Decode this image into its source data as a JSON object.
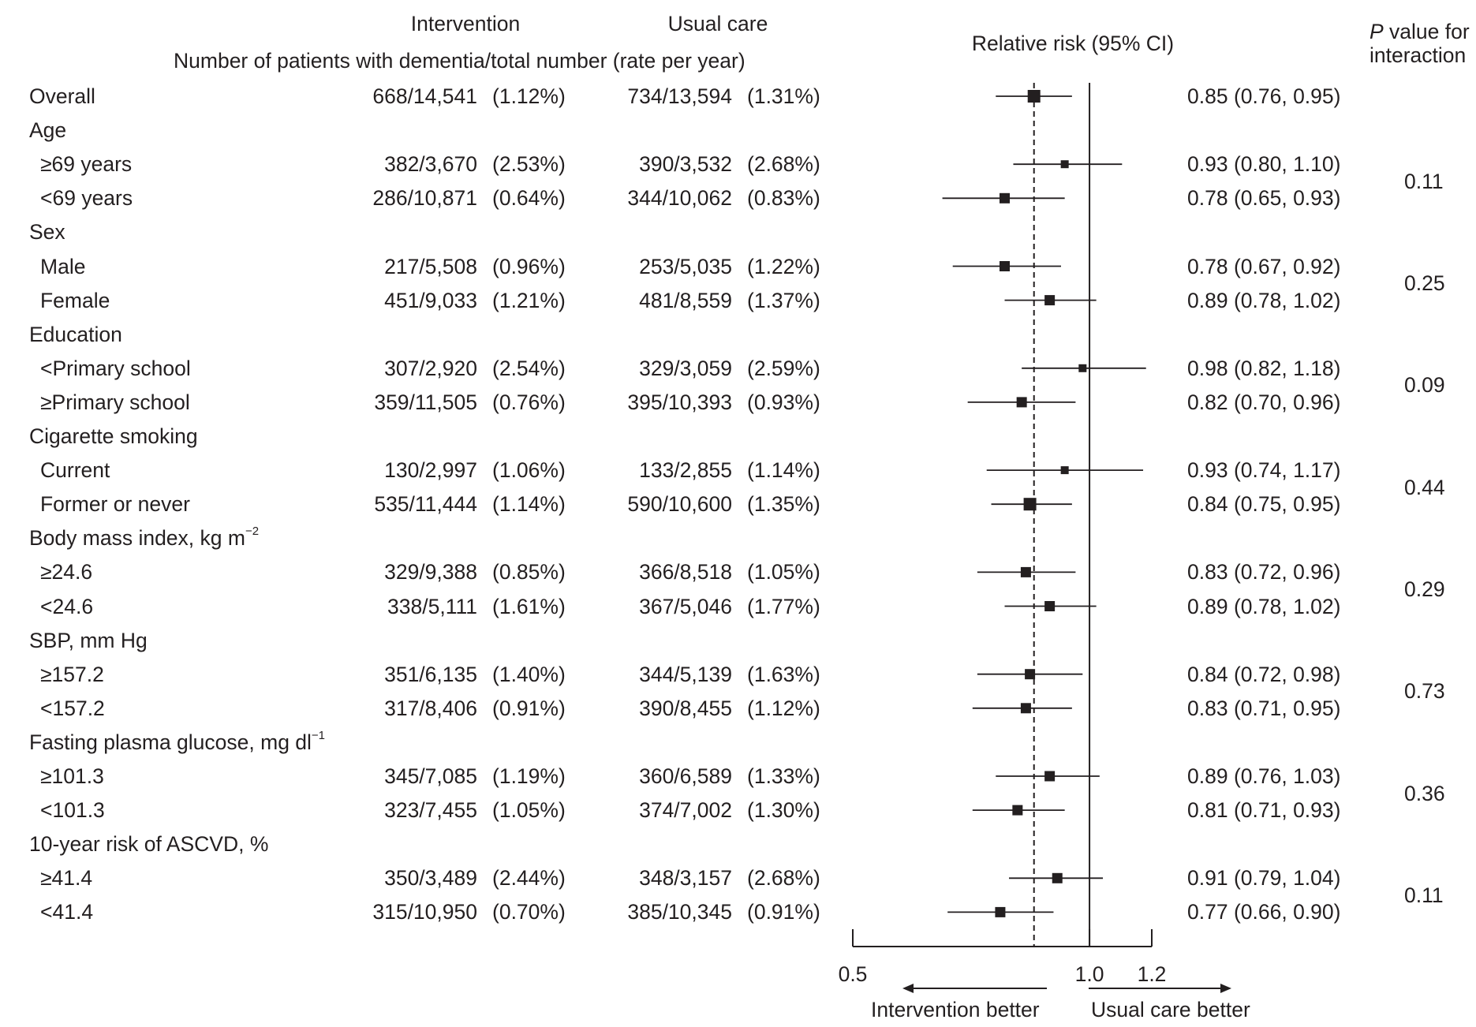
{
  "header": {
    "intervention": "Intervention",
    "usual_care": "Usual care",
    "counts_caption": "Number of patients with dementia/total number (rate per year)",
    "rr_caption": "Relative risk (95% CI)",
    "p_caption_italic": "P",
    "p_caption_line1": " value for",
    "p_caption_line2": "interaction"
  },
  "rows": [
    {
      "label": "Overall",
      "int": "668/14,541",
      "int_rate": "(1.12%)",
      "uc": "734/13,594",
      "uc_rate": "(1.31%)",
      "rr_text": "0.85 (0.76, 0.95)"
    },
    {
      "label": "Age",
      "sup": "",
      "header": true
    },
    {
      "label": "≥69 years",
      "int": "382/3,670",
      "int_rate": "(2.53%)",
      "uc": "390/3,532",
      "uc_rate": "(2.68%)",
      "rr_text": "0.93 (0.80, 1.10)"
    },
    {
      "label": "<69 years",
      "int": "286/10,871",
      "int_rate": "(0.64%)",
      "uc": "344/10,062",
      "uc_rate": "(0.83%)",
      "rr_text": "0.78 (0.65, 0.93)"
    },
    {
      "label": "Sex",
      "sup": "",
      "header": true
    },
    {
      "label": "Male",
      "int": "217/5,508",
      "int_rate": "(0.96%)",
      "uc": "253/5,035",
      "uc_rate": "(1.22%)",
      "rr_text": "0.78 (0.67, 0.92)"
    },
    {
      "label": "Female",
      "int": "451/9,033",
      "int_rate": "(1.21%)",
      "uc": "481/8,559",
      "uc_rate": "(1.37%)",
      "rr_text": "0.89 (0.78, 1.02)"
    },
    {
      "label": "Education",
      "sup": "",
      "header": true
    },
    {
      "label": "<Primary school",
      "int": "307/2,920",
      "int_rate": "(2.54%)",
      "uc": "329/3,059",
      "uc_rate": "(2.59%)",
      "rr_text": "0.98 (0.82, 1.18)"
    },
    {
      "label": "≥Primary school",
      "int": "359/11,505",
      "int_rate": "(0.76%)",
      "uc": "395/10,393",
      "uc_rate": "(0.93%)",
      "rr_text": "0.82 (0.70, 0.96)"
    },
    {
      "label": "Cigarette smoking",
      "sup": "",
      "header": true
    },
    {
      "label": "Current",
      "int": "130/2,997",
      "int_rate": "(1.06%)",
      "uc": "133/2,855",
      "uc_rate": "(1.14%)",
      "rr_text": "0.93 (0.74, 1.17)"
    },
    {
      "label": "Former or never",
      "int": "535/11,444",
      "int_rate": "(1.14%)",
      "uc": "590/10,600",
      "uc_rate": "(1.35%)",
      "rr_text": "0.84 (0.75, 0.95)"
    },
    {
      "label": "Body mass index, kg m",
      "sup": "−2",
      "header": true
    },
    {
      "label": "≥24.6",
      "int": "329/9,388",
      "int_rate": "(0.85%)",
      "uc": "366/8,518",
      "uc_rate": "(1.05%)",
      "rr_text": "0.83 (0.72, 0.96)"
    },
    {
      "label": "<24.6",
      "int": "338/5,111",
      "int_rate": "(1.61%)",
      "uc": "367/5,046",
      "uc_rate": "(1.77%)",
      "rr_text": "0.89 (0.78, 1.02)"
    },
    {
      "label": "SBP, mm Hg",
      "sup": "",
      "header": true
    },
    {
      "label": "≥157.2",
      "int": "351/6,135",
      "int_rate": "(1.40%)",
      "uc": "344/5,139",
      "uc_rate": "(1.63%)",
      "rr_text": "0.84 (0.72, 0.98)"
    },
    {
      "label": "<157.2",
      "int": "317/8,406",
      "int_rate": "(0.91%)",
      "uc": "390/8,455",
      "uc_rate": "(1.12%)",
      "rr_text": "0.83 (0.71, 0.95)"
    },
    {
      "label": "Fasting plasma glucose, mg dl",
      "sup": "−1",
      "header": true
    },
    {
      "label": "≥101.3",
      "int": "345/7,085",
      "int_rate": "(1.19%)",
      "uc": "360/6,589",
      "uc_rate": "(1.33%)",
      "rr_text": "0.89 (0.76, 1.03)"
    },
    {
      "label": "<101.3",
      "int": "323/7,455",
      "int_rate": "(1.05%)",
      "uc": "374/7,002",
      "uc_rate": "(1.30%)",
      "rr_text": "0.81 (0.71, 0.93)"
    },
    {
      "label": "10-year risk of ASCVD, %",
      "sup": "",
      "header": true
    },
    {
      "label": "≥41.4",
      "int": "350/3,489",
      "int_rate": "(2.44%)",
      "uc": "348/3,157",
      "uc_rate": "(2.68%)",
      "rr_text": "0.91 (0.79, 1.04)"
    },
    {
      "label": "<41.4",
      "int": "315/10,950",
      "int_rate": "(0.70%)",
      "uc": "385/10,345",
      "uc_rate": "(0.91%)",
      "rr_text": "0.77 (0.66, 0.90)"
    }
  ],
  "p_values": [
    {
      "value": "0.11",
      "rows": [
        2,
        3
      ]
    },
    {
      "value": "0.25",
      "rows": [
        5,
        6
      ]
    },
    {
      "value": "0.09",
      "rows": [
        8,
        9
      ]
    },
    {
      "value": "0.44",
      "rows": [
        11,
        12
      ]
    },
    {
      "value": "0.29",
      "rows": [
        14,
        15
      ]
    },
    {
      "value": "0.73",
      "rows": [
        17,
        18
      ]
    },
    {
      "value": "0.36",
      "rows": [
        20,
        21
      ]
    },
    {
      "value": "0.11",
      "rows": [
        23,
        24
      ]
    }
  ],
  "footer": {
    "intervention_better": "Intervention better",
    "usual_care_better": "Usual care better"
  },
  "chart_data": {
    "type": "forest",
    "title": "Relative risk (95% CI)",
    "x_scale": "log",
    "xlim": [
      0.5,
      1.2
    ],
    "ticks": [
      0.5,
      1.0,
      1.2
    ],
    "tick_labels": [
      "0.5",
      "1.0",
      "1.2"
    ],
    "reference_line": 1.0,
    "overall_dashed_line": 0.85,
    "points": [
      {
        "row": 0,
        "label": "Overall",
        "rr": 0.85,
        "lo": 0.76,
        "hi": 0.95,
        "marker": "large"
      },
      {
        "row": 2,
        "label": "≥69 years",
        "rr": 0.93,
        "lo": 0.8,
        "hi": 1.1,
        "marker": "small"
      },
      {
        "row": 3,
        "label": "<69 years",
        "rr": 0.78,
        "lo": 0.65,
        "hi": 0.93,
        "marker": "medium"
      },
      {
        "row": 5,
        "label": "Male",
        "rr": 0.78,
        "lo": 0.67,
        "hi": 0.92,
        "marker": "medium"
      },
      {
        "row": 6,
        "label": "Female",
        "rr": 0.89,
        "lo": 0.78,
        "hi": 1.02,
        "marker": "medium"
      },
      {
        "row": 8,
        "label": "<Primary school",
        "rr": 0.98,
        "lo": 0.82,
        "hi": 1.18,
        "marker": "small"
      },
      {
        "row": 9,
        "label": "≥Primary school",
        "rr": 0.82,
        "lo": 0.7,
        "hi": 0.96,
        "marker": "medium"
      },
      {
        "row": 11,
        "label": "Current",
        "rr": 0.93,
        "lo": 0.74,
        "hi": 1.17,
        "marker": "small"
      },
      {
        "row": 12,
        "label": "Former or never",
        "rr": 0.84,
        "lo": 0.75,
        "hi": 0.95,
        "marker": "large"
      },
      {
        "row": 14,
        "label": "≥24.6",
        "rr": 0.83,
        "lo": 0.72,
        "hi": 0.96,
        "marker": "medium"
      },
      {
        "row": 15,
        "label": "<24.6",
        "rr": 0.89,
        "lo": 0.78,
        "hi": 1.02,
        "marker": "medium"
      },
      {
        "row": 17,
        "label": "≥157.2",
        "rr": 0.84,
        "lo": 0.72,
        "hi": 0.98,
        "marker": "medium"
      },
      {
        "row": 18,
        "label": "<157.2",
        "rr": 0.83,
        "lo": 0.71,
        "hi": 0.95,
        "marker": "medium"
      },
      {
        "row": 20,
        "label": "≥101.3",
        "rr": 0.89,
        "lo": 0.76,
        "hi": 1.03,
        "marker": "medium"
      },
      {
        "row": 21,
        "label": "<101.3",
        "rr": 0.81,
        "lo": 0.71,
        "hi": 0.93,
        "marker": "medium"
      },
      {
        "row": 23,
        "label": "≥41.4",
        "rr": 0.91,
        "lo": 0.79,
        "hi": 1.04,
        "marker": "medium"
      },
      {
        "row": 24,
        "label": "<41.4",
        "rr": 0.77,
        "lo": 0.66,
        "hi": 0.9,
        "marker": "medium"
      }
    ]
  },
  "colors": {
    "ink": "#231f20",
    "background": "#ffffff"
  }
}
